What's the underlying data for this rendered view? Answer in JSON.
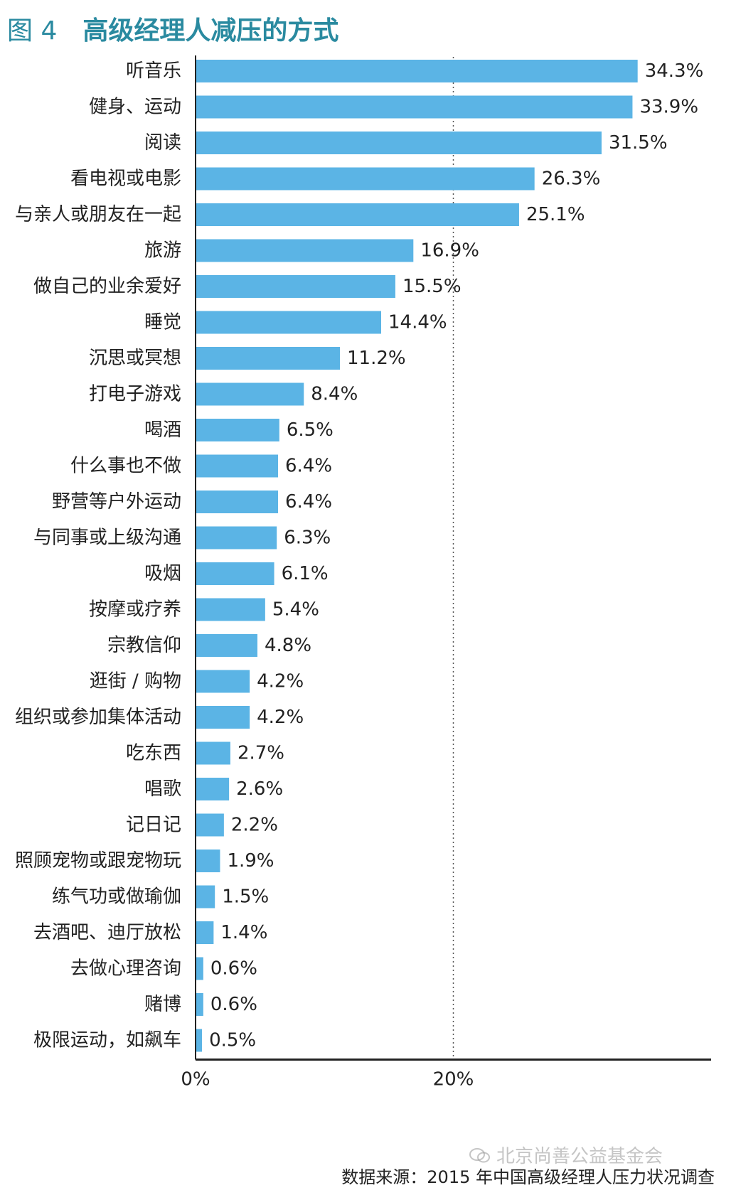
{
  "figure_number": "图 4",
  "colors": {
    "bar": "#5bb4e5",
    "title": "#2a8aa0",
    "axis": "#222222",
    "gridline": "#555555"
  },
  "source": "数据来源：2015 年中国高级经理人压力状况调查",
  "watermark": "北京尚善公益基金会",
  "chart_data": {
    "type": "bar",
    "orientation": "horizontal",
    "title": "高级经理人减压的方式",
    "xlabel": "",
    "ylabel": "",
    "xlim": [
      0,
      40
    ],
    "x_ticks": [
      {
        "value": 0,
        "label": "0%"
      },
      {
        "value": 20,
        "label": "20%"
      }
    ],
    "gridlines": [
      20
    ],
    "legend": "none",
    "categories": [
      "听音乐",
      "健身、运动",
      "阅读",
      "看电视或电影",
      "与亲人或朋友在一起",
      "旅游",
      "做自己的业余爱好",
      "睡觉",
      "沉思或冥想",
      "打电子游戏",
      "喝酒",
      "什么事也不做",
      "野营等户外运动",
      "与同事或上级沟通",
      "吸烟",
      "按摩或疗养",
      "宗教信仰",
      "逛街 / 购物",
      "组织或参加集体活动",
      "吃东西",
      "唱歌",
      "记日记",
      "照顾宠物或跟宠物玩",
      "练气功或做瑜伽",
      "去酒吧、迪厅放松",
      "去做心理咨询",
      "赌博",
      "极限运动，如飙车"
    ],
    "values": [
      34.3,
      33.9,
      31.5,
      26.3,
      25.1,
      16.9,
      15.5,
      14.4,
      11.2,
      8.4,
      6.5,
      6.4,
      6.4,
      6.3,
      6.1,
      5.4,
      4.8,
      4.2,
      4.2,
      2.7,
      2.6,
      2.2,
      1.9,
      1.5,
      1.4,
      0.6,
      0.6,
      0.5
    ],
    "value_labels": [
      "34.3%",
      "33.9%",
      "31.5%",
      "26.3%",
      "25.1%",
      "16.9%",
      "15.5%",
      "14.4%",
      "11.2%",
      "8.4%",
      "6.5%",
      "6.4%",
      "6.4%",
      "6.3%",
      "6.1%",
      "5.4%",
      "4.8%",
      "4.2%",
      "4.2%",
      "2.7%",
      "2.6%",
      "2.2%",
      "1.9%",
      "1.5%",
      "1.4%",
      "0.6%",
      "0.6%",
      "0.5%"
    ]
  }
}
